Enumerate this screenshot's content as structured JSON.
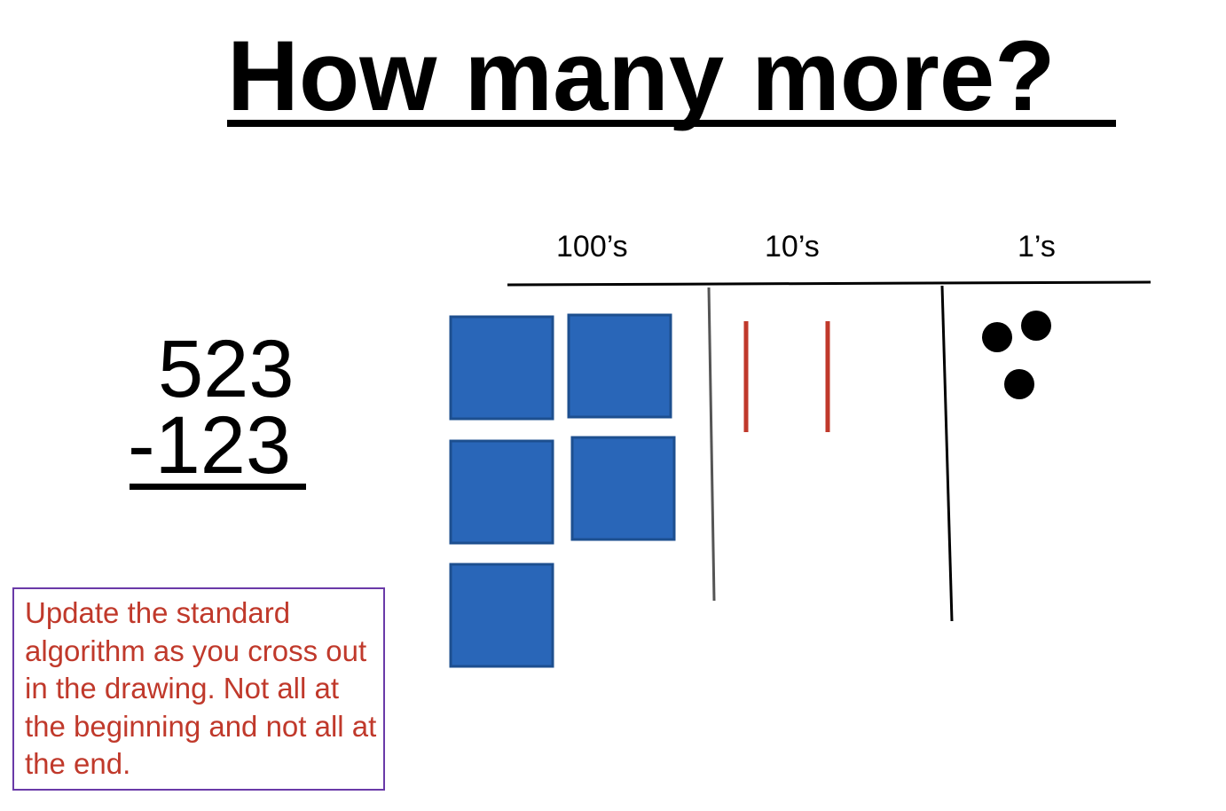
{
  "title": "How many more?",
  "columns": {
    "hundreds": "100’s",
    "tens": "10’s",
    "ones": "1’s"
  },
  "problem": {
    "minuend": "523",
    "subtrahend": "-123"
  },
  "note": "Update the standard algorithm as you cross out in the drawing.  Not all at the beginning and not all at the end.",
  "models": {
    "hundreds_squares": 5,
    "tens_sticks": 2,
    "ones_dots": 3
  },
  "colors": {
    "hundreds_block": "#2966b8",
    "tens_stick": "#c0392b",
    "note_text": "#c0392b",
    "note_border": "#6a3aa8"
  }
}
